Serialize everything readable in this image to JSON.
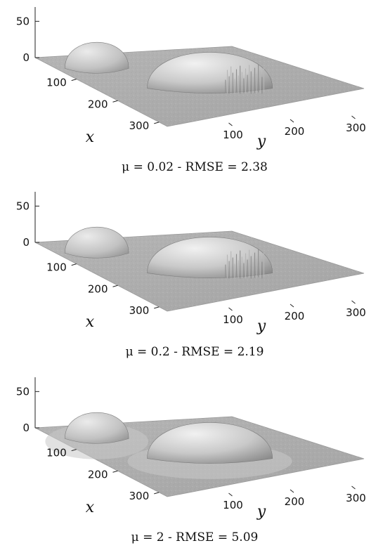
{
  "chart_data": [
    {
      "type": "surface3d",
      "caption": {
        "mu_label": "μ = 0.02",
        "separator": " - ",
        "rmse_label": "RMSE = 2.38"
      },
      "mu": 0.02,
      "rmse": 2.38,
      "xlabel": "x",
      "ylabel": "y",
      "zlabel": "",
      "x_ticks": [
        100,
        200,
        300
      ],
      "y_ticks": [
        100,
        200,
        300
      ],
      "z_ticks": [
        0,
        50
      ],
      "xlim": [
        0,
        320
      ],
      "ylim": [
        0,
        320
      ],
      "zlim": [
        0,
        60
      ],
      "surface": {
        "background_z": 0,
        "small_dome": {
          "center_x": 60,
          "center_y": 60,
          "radius": 45,
          "height": 40
        },
        "large_dome": {
          "center_x": 170,
          "center_y": 170,
          "radius": 95,
          "height": 55
        },
        "spike_artifacts": true,
        "smoothing": "none"
      }
    },
    {
      "type": "surface3d",
      "caption": {
        "mu_label": "μ = 0.2",
        "separator": " - ",
        "rmse_label": "RMSE = 2.19"
      },
      "mu": 0.2,
      "rmse": 2.19,
      "xlabel": "x",
      "ylabel": "y",
      "zlabel": "",
      "x_ticks": [
        100,
        200,
        300
      ],
      "y_ticks": [
        100,
        200,
        300
      ],
      "z_ticks": [
        0,
        50
      ],
      "xlim": [
        0,
        320
      ],
      "ylim": [
        0,
        320
      ],
      "zlim": [
        0,
        60
      ],
      "surface": {
        "background_z": 0,
        "small_dome": {
          "center_x": 60,
          "center_y": 60,
          "radius": 45,
          "height": 40
        },
        "large_dome": {
          "center_x": 170,
          "center_y": 170,
          "radius": 95,
          "height": 55
        },
        "spike_artifacts": true,
        "smoothing": "low"
      }
    },
    {
      "type": "surface3d",
      "caption": {
        "mu_label": "μ = 2",
        "separator": " - ",
        "rmse_label": "RMSE = 5.09"
      },
      "mu": 2,
      "rmse": 5.09,
      "xlabel": "x",
      "ylabel": "y",
      "zlabel": "",
      "x_ticks": [
        100,
        200,
        300
      ],
      "y_ticks": [
        100,
        200,
        300
      ],
      "z_ticks": [
        0,
        50
      ],
      "xlim": [
        0,
        320
      ],
      "ylim": [
        0,
        320
      ],
      "zlim": [
        0,
        60
      ],
      "surface": {
        "background_z": 0,
        "small_dome": {
          "center_x": 60,
          "center_y": 60,
          "radius": 45,
          "height": 40
        },
        "large_dome": {
          "center_x": 170,
          "center_y": 170,
          "radius": 95,
          "height": 55
        },
        "spike_artifacts": false,
        "smoothing": "high"
      }
    }
  ],
  "colors": {
    "background": "#ffffff",
    "surface_light": "#e2e2e2",
    "surface_mid": "#bdbdbd",
    "surface_dark": "#8c8c8c",
    "axis": "#222222",
    "text": "#111111"
  }
}
